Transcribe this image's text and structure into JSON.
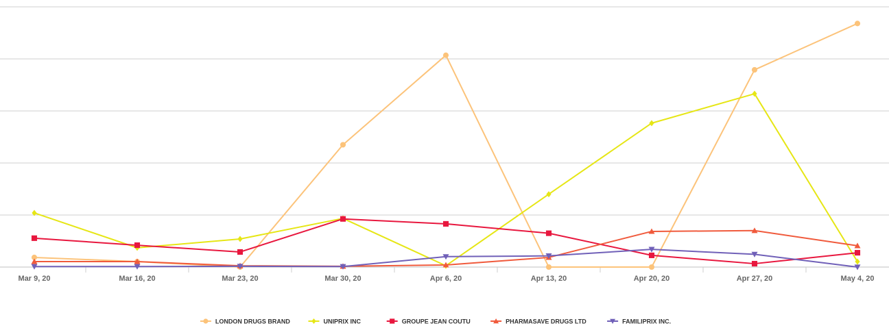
{
  "chart_data": {
    "type": "line",
    "title": "",
    "xlabel": "",
    "ylabel": "",
    "ylim": [
      0,
      100
    ],
    "grid": true,
    "legend_position": "bottom-center",
    "categories": [
      "Mar 9, 20",
      "Mar 16, 20",
      "Mar 23, 20",
      "Mar 30, 20",
      "Apr 6, 20",
      "Apr 13, 20",
      "Apr 20, 20",
      "Apr 27, 20",
      "May 4, 20"
    ],
    "series": [
      {
        "name": "LONDON DRUGS BRAND",
        "color": "#fcc37a",
        "marker": "circle",
        "values": [
          3.7,
          2.1,
          0,
          47,
          81.4,
          0,
          0,
          75.8,
          93.6
        ]
      },
      {
        "name": "UNIPRIX INC",
        "color": "#e6e615",
        "marker": "diamond",
        "values": [
          20.8,
          7.4,
          10.8,
          18.7,
          0.5,
          28,
          55.3,
          66.6,
          2.1
        ]
      },
      {
        "name": "GROUPE JEAN COUTU",
        "color": "#e8173e",
        "marker": "square",
        "values": [
          11.1,
          8.4,
          5.8,
          18.5,
          16.6,
          13,
          4.5,
          1.3,
          5.5
        ]
      },
      {
        "name": "PHARMASAVE DRUGS LTD",
        "color": "#f05a3c",
        "marker": "triangle-up",
        "values": [
          2.1,
          2.1,
          0.5,
          0.3,
          0.8,
          3.7,
          13.7,
          14,
          8.2
        ]
      },
      {
        "name": "FAMILIPRIX INC.",
        "color": "#7060b8",
        "marker": "triangle-down",
        "values": [
          0.2,
          0.2,
          0.3,
          0.2,
          4,
          4.3,
          6.8,
          4.9,
          0
        ]
      }
    ]
  }
}
